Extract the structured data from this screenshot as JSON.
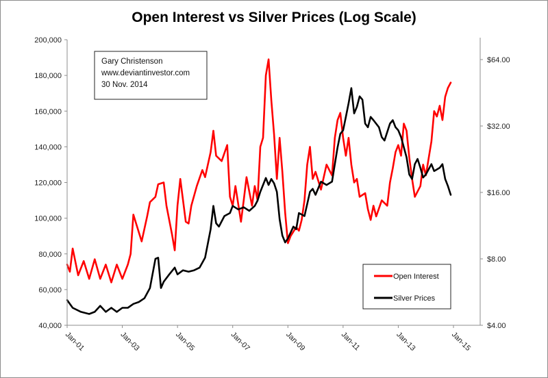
{
  "chart_data": {
    "type": "line",
    "title": "Open Interest vs Silver Prices (Log Scale)",
    "xlabel": "",
    "ylabel_left": "",
    "ylabel_right": "",
    "x_range": [
      2001.0,
      2015.0
    ],
    "x_ticks": [
      {
        "value": 2001,
        "label": "Jan-01"
      },
      {
        "value": 2003,
        "label": "Jan-03"
      },
      {
        "value": 2005,
        "label": "Jan-05"
      },
      {
        "value": 2007,
        "label": "Jan-07"
      },
      {
        "value": 2009,
        "label": "Jan-09"
      },
      {
        "value": 2011,
        "label": "Jan-11"
      },
      {
        "value": 2013,
        "label": "Jan-13"
      },
      {
        "value": 2015,
        "label": "Jan-15"
      }
    ],
    "y_left": {
      "scale": "linear",
      "range": [
        40000,
        200000
      ],
      "ticks": [
        {
          "value": 40000,
          "label": "40,000"
        },
        {
          "value": 60000,
          "label": "60,000"
        },
        {
          "value": 80000,
          "label": "80,000"
        },
        {
          "value": 100000,
          "label": "100,000"
        },
        {
          "value": 120000,
          "label": "120,000"
        },
        {
          "value": 140000,
          "label": "140,000"
        },
        {
          "value": 160000,
          "label": "160,000"
        },
        {
          "value": 180000,
          "label": "180,000"
        },
        {
          "value": 200000,
          "label": "200,000"
        }
      ]
    },
    "y_right": {
      "scale": "log2",
      "range": [
        4,
        80
      ],
      "ticks": [
        {
          "value": 4,
          "label": "$4.00"
        },
        {
          "value": 8,
          "label": "$8.00"
        },
        {
          "value": 16,
          "label": "$16.00"
        },
        {
          "value": 32,
          "label": "$32.00"
        },
        {
          "value": 64,
          "label": "$64.00"
        }
      ]
    },
    "grid": false,
    "legend_position": "bottom-right",
    "annotation": {
      "position": "top-left",
      "lines": [
        "Gary Christenson",
        "www.deviantinvestor.com",
        "30 Nov. 2014"
      ]
    },
    "series": [
      {
        "name": "Open Interest",
        "axis": "left",
        "color": "#ff0000",
        "x": [
          2001.0,
          2001.1,
          2001.2,
          2001.4,
          2001.6,
          2001.8,
          2002.0,
          2002.2,
          2002.4,
          2002.6,
          2002.8,
          2003.0,
          2003.2,
          2003.3,
          2003.4,
          2003.5,
          2003.7,
          2003.9,
          2004.0,
          2004.2,
          2004.3,
          2004.5,
          2004.6,
          2004.8,
          2004.9,
          2005.0,
          2005.1,
          2005.3,
          2005.4,
          2005.5,
          2005.7,
          2005.9,
          2006.0,
          2006.2,
          2006.3,
          2006.4,
          2006.6,
          2006.8,
          2006.9,
          2007.0,
          2007.1,
          2007.3,
          2007.4,
          2007.5,
          2007.7,
          2007.8,
          2007.9,
          2008.0,
          2008.1,
          2008.2,
          2008.3,
          2008.4,
          2008.5,
          2008.6,
          2008.7,
          2008.8,
          2008.9,
          2009.0,
          2009.1,
          2009.3,
          2009.4,
          2009.5,
          2009.6,
          2009.7,
          2009.8,
          2009.9,
          2010.0,
          2010.2,
          2010.4,
          2010.6,
          2010.7,
          2010.8,
          2010.9,
          2011.0,
          2011.1,
          2011.2,
          2011.3,
          2011.4,
          2011.5,
          2011.6,
          2011.8,
          2011.9,
          2012.0,
          2012.1,
          2012.2,
          2012.4,
          2012.6,
          2012.7,
          2012.8,
          2012.9,
          2013.0,
          2013.1,
          2013.2,
          2013.3,
          2013.4,
          2013.5,
          2013.6,
          2013.8,
          2013.9,
          2014.0,
          2014.2,
          2014.3,
          2014.4,
          2014.5,
          2014.6,
          2014.7,
          2014.8,
          2014.9
        ],
        "values": [
          74000,
          70000,
          83000,
          68000,
          76000,
          66000,
          77000,
          66000,
          74000,
          64000,
          74000,
          66000,
          74000,
          80000,
          102000,
          97000,
          87000,
          101000,
          109000,
          112000,
          119000,
          120000,
          107000,
          91000,
          82000,
          107000,
          122000,
          98000,
          97000,
          107000,
          118000,
          127000,
          123000,
          137000,
          149000,
          135000,
          132000,
          141000,
          112000,
          107000,
          118000,
          98000,
          110000,
          123000,
          107000,
          118000,
          110000,
          140000,
          145000,
          180000,
          189000,
          166000,
          147000,
          122000,
          145000,
          126000,
          103000,
          86000,
          90000,
          95000,
          93000,
          99000,
          110000,
          130000,
          140000,
          122000,
          126000,
          116000,
          130000,
          124000,
          145000,
          155000,
          159000,
          145000,
          135000,
          145000,
          130000,
          120000,
          122000,
          112000,
          114000,
          105000,
          99000,
          107000,
          101000,
          110000,
          107000,
          120000,
          128000,
          137000,
          141000,
          135000,
          153000,
          149000,
          134000,
          122000,
          112000,
          118000,
          130000,
          124000,
          143000,
          160000,
          157000,
          163000,
          155000,
          168000,
          173000,
          176000
        ]
      },
      {
        "name": "Silver Prices",
        "axis": "right",
        "color": "#000000",
        "x": [
          2001.0,
          2001.2,
          2001.5,
          2001.8,
          2002.0,
          2002.2,
          2002.4,
          2002.6,
          2002.8,
          2003.0,
          2003.2,
          2003.4,
          2003.6,
          2003.8,
          2004.0,
          2004.2,
          2004.3,
          2004.4,
          2004.5,
          2004.7,
          2004.9,
          2005.0,
          2005.2,
          2005.4,
          2005.6,
          2005.8,
          2006.0,
          2006.2,
          2006.3,
          2006.4,
          2006.5,
          2006.7,
          2006.9,
          2007.0,
          2007.2,
          2007.4,
          2007.6,
          2007.8,
          2007.9,
          2008.0,
          2008.2,
          2008.3,
          2008.4,
          2008.5,
          2008.6,
          2008.7,
          2008.8,
          2008.9,
          2009.0,
          2009.2,
          2009.3,
          2009.4,
          2009.6,
          2009.8,
          2009.9,
          2010.0,
          2010.2,
          2010.4,
          2010.6,
          2010.7,
          2010.8,
          2010.9,
          2011.0,
          2011.1,
          2011.2,
          2011.3,
          2011.4,
          2011.5,
          2011.6,
          2011.7,
          2011.8,
          2011.9,
          2012.0,
          2012.1,
          2012.3,
          2012.4,
          2012.5,
          2012.7,
          2012.8,
          2012.9,
          2013.0,
          2013.1,
          2013.3,
          2013.4,
          2013.5,
          2013.6,
          2013.7,
          2013.8,
          2013.9,
          2014.0,
          2014.2,
          2014.3,
          2014.5,
          2014.6,
          2014.7,
          2014.8,
          2014.9
        ],
        "values": [
          5.2,
          4.8,
          4.6,
          4.5,
          4.6,
          4.9,
          4.6,
          4.8,
          4.6,
          4.8,
          4.8,
          5.0,
          5.1,
          5.3,
          5.9,
          8.0,
          8.1,
          5.9,
          6.3,
          6.8,
          7.3,
          6.8,
          7.1,
          7.0,
          7.1,
          7.3,
          8.1,
          10.9,
          13.9,
          11.6,
          11.2,
          12.5,
          12.9,
          13.9,
          13.4,
          13.7,
          13.2,
          13.9,
          14.7,
          16.1,
          18.6,
          17.3,
          18.4,
          17.6,
          16.1,
          12.1,
          10.2,
          9.5,
          9.9,
          11.2,
          10.9,
          12.9,
          12.5,
          16.1,
          16.6,
          15.6,
          17.9,
          17.3,
          17.9,
          21.5,
          25.6,
          29.5,
          30.6,
          35.2,
          40.6,
          47.5,
          36.5,
          39.1,
          43.6,
          42.1,
          32.8,
          31.6,
          35.2,
          34.0,
          31.6,
          28.5,
          27.5,
          32.8,
          34.0,
          31.6,
          30.6,
          28.5,
          23.1,
          19.3,
          18.4,
          21.5,
          22.7,
          20.7,
          18.7,
          19.3,
          21.5,
          20.0,
          20.7,
          21.5,
          18.4,
          17.1,
          15.6
        ]
      }
    ]
  }
}
